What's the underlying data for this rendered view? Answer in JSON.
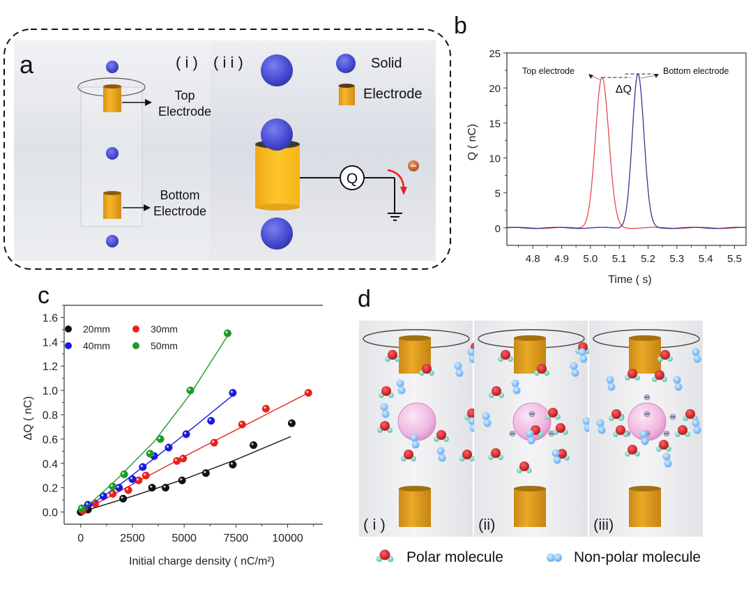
{
  "figure": {
    "panels": {
      "a": {
        "letter": "a",
        "sub_i": "( i )",
        "sub_ii": "( i i )",
        "top_electrode_label": [
          "Top",
          "Electrode"
        ],
        "bottom_electrode_label": [
          "Bottom",
          "Electrode"
        ],
        "legend": [
          {
            "icon": "solid-sphere-icon",
            "label": "Solid"
          },
          {
            "icon": "electrode-icon",
            "label": "Electrode"
          }
        ],
        "meter_label": "Q",
        "colors": {
          "sphere": "#4b4fd6",
          "electrode": "#f2b01e",
          "arrow": "#e8201c",
          "electron": "#c0602a"
        }
      },
      "b": {
        "letter": "b"
      },
      "c": {
        "letter": "c"
      },
      "d": {
        "letter": "d",
        "subpanels": [
          "( i )",
          "(ii)",
          "(iii)"
        ],
        "legend": [
          {
            "icon": "polar-molecule-icon",
            "label": "Polar molecule"
          },
          {
            "icon": "non-polar-molecule-icon",
            "label": "Non-polar molecule"
          }
        ]
      }
    }
  },
  "chart_data": [
    {
      "id": "b",
      "type": "line",
      "title": "",
      "xlabel": "Time ( s)",
      "ylabel": "Q ( nC)",
      "xlim": [
        4.71,
        5.54
      ],
      "ylim": [
        -2.5,
        25
      ],
      "xticks": [
        "4.8",
        "4.9",
        "5.0",
        "5.1",
        "5.2",
        "5.3",
        "5.4",
        "5.5"
      ],
      "xtick_values": [
        4.8,
        4.9,
        5.0,
        5.1,
        5.2,
        5.3,
        5.4,
        5.5
      ],
      "yticks": [
        "0",
        "5",
        "10",
        "15",
        "20",
        "25"
      ],
      "ytick_values": [
        0,
        5,
        10,
        15,
        20,
        25
      ],
      "grid": false,
      "series": [
        {
          "name": "Top electrode",
          "color": "#e8454f",
          "peak_x": 5.04,
          "peak_y": 21.5,
          "width": 0.032
        },
        {
          "name": "Bottom electrode",
          "color": "#33338f",
          "peak_x": 5.165,
          "peak_y": 22.0,
          "width": 0.028
        }
      ],
      "annotations": {
        "top": "Top electrode",
        "bottom": "Bottom electrode",
        "delta": "ΔQ"
      }
    },
    {
      "id": "c",
      "type": "scatter",
      "title": "",
      "xlabel": "Initial charge density ( nC/m²)",
      "ylabel": "ΔQ ( nC)",
      "xlim": [
        -800,
        11700
      ],
      "ylim": [
        -0.1,
        1.7
      ],
      "xticks": [
        "0",
        "2500",
        "5000",
        "7500",
        "10000"
      ],
      "xtick_values": [
        0,
        2500,
        5000,
        7500,
        10000
      ],
      "yticks": [
        "0.0",
        "0.2",
        "0.4",
        "0.6",
        "0.8",
        "1.0",
        "1.2",
        "1.4",
        "1.6"
      ],
      "ytick_values": [
        0,
        0.2,
        0.4,
        0.6,
        0.8,
        1.0,
        1.2,
        1.4,
        1.6
      ],
      "grid": false,
      "legend_position": "top-left",
      "series": [
        {
          "name": "20mm",
          "color": "#111111",
          "x": [
            0,
            350,
            2050,
            3450,
            4100,
            4900,
            6050,
            7350,
            8350,
            10200
          ],
          "y": [
            0.0,
            0.02,
            0.11,
            0.2,
            0.2,
            0.26,
            0.32,
            0.39,
            0.55,
            0.73
          ],
          "fit": [
            [
              0,
              0.0
            ],
            [
              2500,
              0.13
            ],
            [
              5000,
              0.27
            ],
            [
              7500,
              0.43
            ],
            [
              10150,
              0.62
            ]
          ]
        },
        {
          "name": "30mm",
          "color": "#e8201c",
          "x": [
            100,
            700,
            1550,
            2300,
            2800,
            3150,
            4650,
            4950,
            6450,
            7800,
            8950,
            11000
          ],
          "y": [
            0.01,
            0.07,
            0.15,
            0.18,
            0.26,
            0.3,
            0.42,
            0.44,
            0.57,
            0.72,
            0.85,
            0.98
          ],
          "fit": [
            [
              0,
              0.0
            ],
            [
              2750,
              0.25
            ],
            [
              5500,
              0.5
            ],
            [
              8250,
              0.74
            ],
            [
              11000,
              0.98
            ]
          ]
        },
        {
          "name": "40mm",
          "color": "#1a1ae0",
          "x": [
            350,
            1100,
            1850,
            2500,
            3000,
            3550,
            4250,
            5100,
            6300,
            7350
          ],
          "y": [
            0.06,
            0.13,
            0.2,
            0.27,
            0.37,
            0.46,
            0.53,
            0.64,
            0.75,
            0.98
          ],
          "fit": [
            [
              0,
              0.0
            ],
            [
              1850,
              0.22
            ],
            [
              3700,
              0.46
            ],
            [
              5550,
              0.71
            ],
            [
              7350,
              0.96
            ]
          ]
        },
        {
          "name": "50mm",
          "color": "#1f9a2a",
          "x": [
            50,
            1550,
            2100,
            3350,
            3850,
            5300,
            7100
          ],
          "y": [
            0.03,
            0.21,
            0.31,
            0.48,
            0.6,
            1.0,
            1.47
          ],
          "fit": [
            [
              0,
              0.0
            ],
            [
              1750,
              0.27
            ],
            [
              3550,
              0.58
            ],
            [
              5300,
              0.97
            ],
            [
              7100,
              1.45
            ]
          ]
        }
      ]
    }
  ]
}
